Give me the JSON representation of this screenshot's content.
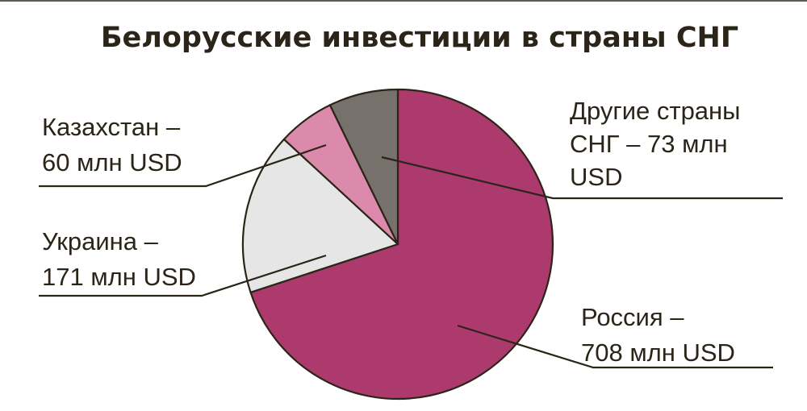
{
  "chart_data": {
    "type": "pie",
    "title": "Белорусские инвестиции в страны СНГ",
    "slices": [
      {
        "name": "Россия",
        "value": 708,
        "color": "#ad3a6c",
        "label_lines": [
          "Россия –",
          "708 млн USD"
        ]
      },
      {
        "name": "Украина",
        "value": 171,
        "color": "#e6e6e6",
        "label_lines": [
          "Украина –",
          "171 млн USD"
        ]
      },
      {
        "name": "Казахстан",
        "value": 60,
        "color": "#dc8aac",
        "label_lines": [
          "Казахстан –",
          "60 млн USD"
        ]
      },
      {
        "name": "Другие страны СНГ",
        "value": 73,
        "color": "#77716b",
        "label_lines": [
          "Другие страны",
          "СНГ – 73 млн",
          "USD"
        ]
      }
    ],
    "legend": "none"
  }
}
